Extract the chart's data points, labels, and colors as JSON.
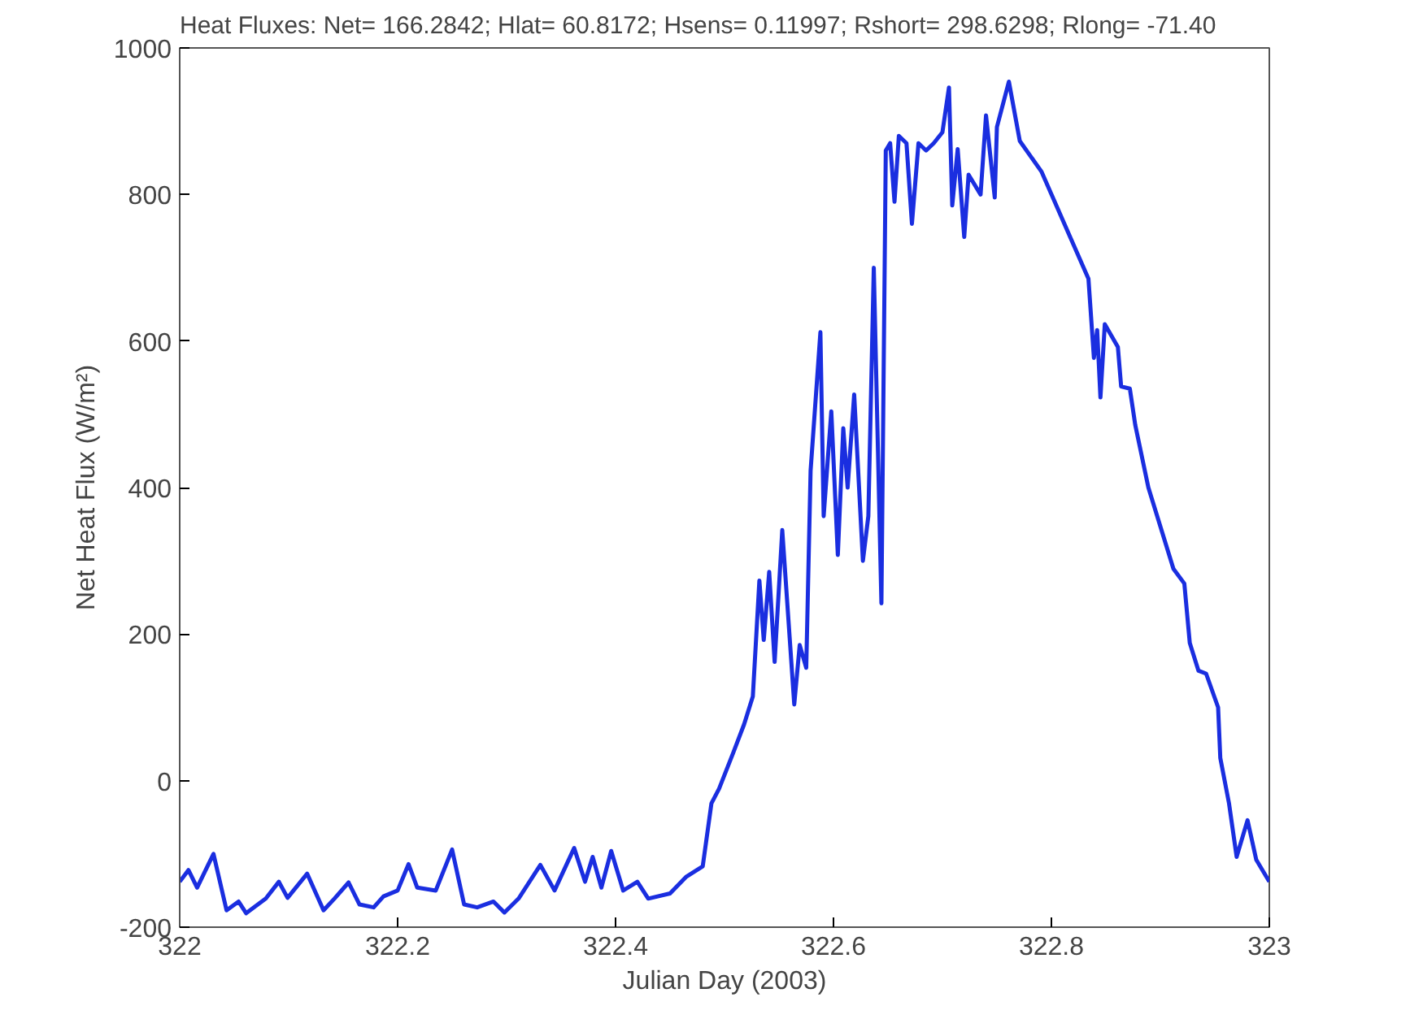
{
  "chart_data": {
    "type": "line",
    "title": "Heat Fluxes:  Net= 166.2842; Hlat= 60.8172; Hsens= 0.11997; Rshort= 298.6298; Rlong= -71.40",
    "xlabel": "Julian Day (2003)",
    "ylabel": "Net Heat Flux (W/m²)",
    "xlim": [
      322,
      323
    ],
    "ylim": [
      -200,
      1000
    ],
    "xticks": [
      322,
      322.2,
      322.4,
      322.6,
      322.8,
      323
    ],
    "yticks": [
      -200,
      0,
      200,
      400,
      600,
      800,
      1000
    ],
    "grid": false,
    "marker": "none",
    "line_style": "solid",
    "series": [
      {
        "color": "#1a2ee0",
        "x": [
          322.0,
          322.008,
          322.016,
          322.031,
          322.043,
          322.054,
          322.061,
          322.079,
          322.091,
          322.099,
          322.117,
          322.132,
          322.142,
          322.155,
          322.165,
          322.178,
          322.187,
          322.2,
          322.21,
          322.218,
          322.235,
          322.25,
          322.261,
          322.273,
          322.288,
          322.298,
          322.311,
          322.331,
          322.344,
          322.362,
          322.372,
          322.379,
          322.387,
          322.396,
          322.407,
          322.42,
          322.43,
          322.45,
          322.465,
          322.48,
          322.488,
          322.495,
          322.508,
          322.518,
          322.526,
          322.532,
          322.536,
          322.541,
          322.546,
          322.553,
          322.564,
          322.569,
          322.575,
          322.579,
          322.588,
          322.591,
          322.598,
          322.604,
          322.609,
          322.613,
          322.619,
          322.627,
          322.632,
          322.637,
          322.644,
          322.648,
          322.652,
          322.656,
          322.66,
          322.667,
          322.672,
          322.678,
          322.685,
          322.692,
          322.7,
          322.706,
          322.709,
          322.714,
          322.72,
          322.724,
          322.735,
          322.74,
          322.748,
          322.75,
          322.761,
          322.771,
          322.791,
          322.816,
          322.834,
          322.839,
          322.842,
          322.845,
          322.849,
          322.861,
          322.864,
          322.872,
          322.877,
          322.889,
          322.912,
          322.922,
          322.927,
          322.935,
          322.942,
          322.953,
          322.955,
          322.963,
          322.97,
          322.98,
          322.988,
          323.0
        ],
        "values": [
          -138,
          -122,
          -146,
          -100,
          -177,
          -165,
          -181,
          -161,
          -138,
          -160,
          -127,
          -177,
          -161,
          -139,
          -169,
          -173,
          -158,
          -150,
          -114,
          -146,
          -150,
          -94,
          -169,
          -173,
          -165,
          -180,
          -161,
          -115,
          -150,
          -92,
          -138,
          -104,
          -146,
          -96,
          -150,
          -138,
          -161,
          -154,
          -131,
          -117,
          -31,
          -11,
          38,
          77,
          115,
          273,
          192,
          285,
          162,
          342,
          104,
          185,
          154,
          423,
          612,
          361,
          504,
          308,
          481,
          400,
          527,
          300,
          361,
          700,
          242,
          860,
          870,
          790,
          880,
          870,
          760,
          870,
          860,
          870,
          885,
          946,
          785,
          862,
          742,
          827,
          800,
          908,
          796,
          892,
          954,
          873,
          831,
          746,
          685,
          577,
          615,
          523,
          623,
          592,
          538,
          535,
          485,
          400,
          289,
          269,
          188,
          150,
          146,
          100,
          31,
          -31,
          -104,
          -54,
          -108,
          -138
        ]
      }
    ]
  }
}
